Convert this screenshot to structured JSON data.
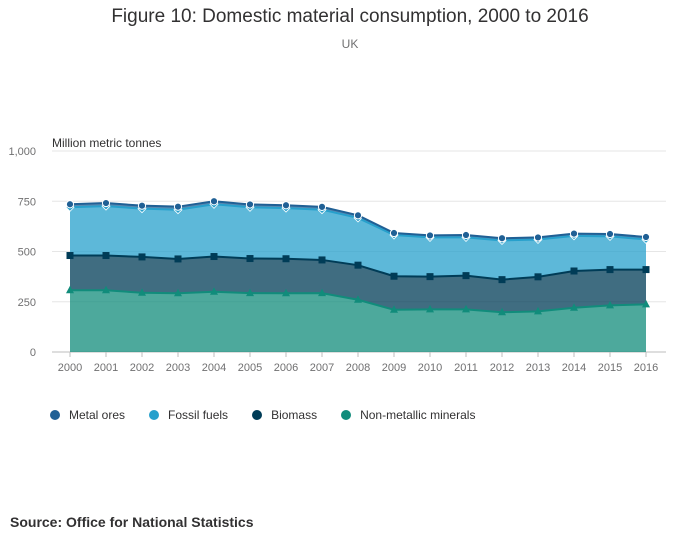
{
  "title": "Figure 10: Domestic material consumption, 2000 to 2016",
  "subtitle": "UK",
  "source": "Source: Office for National Statistics",
  "chart_data": {
    "type": "area",
    "stacked": true,
    "ylabel": "Million metric tonnes",
    "xlabel": "",
    "ylim": [
      0,
      1000
    ],
    "yticks": [
      0,
      250,
      500,
      750,
      1000
    ],
    "ytick_labels": [
      "0",
      "250",
      "500",
      "750",
      "1,000"
    ],
    "grid": true,
    "legend_position": "bottom",
    "categories": [
      "2000",
      "2001",
      "2002",
      "2003",
      "2004",
      "2005",
      "2006",
      "2007",
      "2008",
      "2009",
      "2010",
      "2011",
      "2012",
      "2013",
      "2014",
      "2015",
      "2016"
    ],
    "series": [
      {
        "name": "Metal ores",
        "color": "#206095",
        "marker": "circle",
        "values": [
          15,
          15,
          15,
          15,
          15,
          14,
          14,
          14,
          13,
          10,
          10,
          12,
          11,
          10,
          11,
          12,
          12
        ]
      },
      {
        "name": "Fossil fuels",
        "color": "#27a0cc",
        "marker": "diamond",
        "values": [
          240,
          246,
          240,
          245,
          260,
          255,
          252,
          250,
          235,
          205,
          195,
          190,
          195,
          186,
          175,
          165,
          150
        ]
      },
      {
        "name": "Biomass",
        "color": "#003c57",
        "marker": "square",
        "values": [
          173,
          173,
          178,
          171,
          175,
          172,
          172,
          165,
          172,
          167,
          163,
          168,
          162,
          172,
          183,
          178,
          173
        ]
      },
      {
        "name": "Non-metallic minerals",
        "color": "#118c7b",
        "marker": "triangle",
        "values": [
          307,
          307,
          295,
          292,
          300,
          293,
          292,
          293,
          260,
          210,
          212,
          212,
          198,
          202,
          220,
          232,
          237
        ]
      }
    ]
  }
}
